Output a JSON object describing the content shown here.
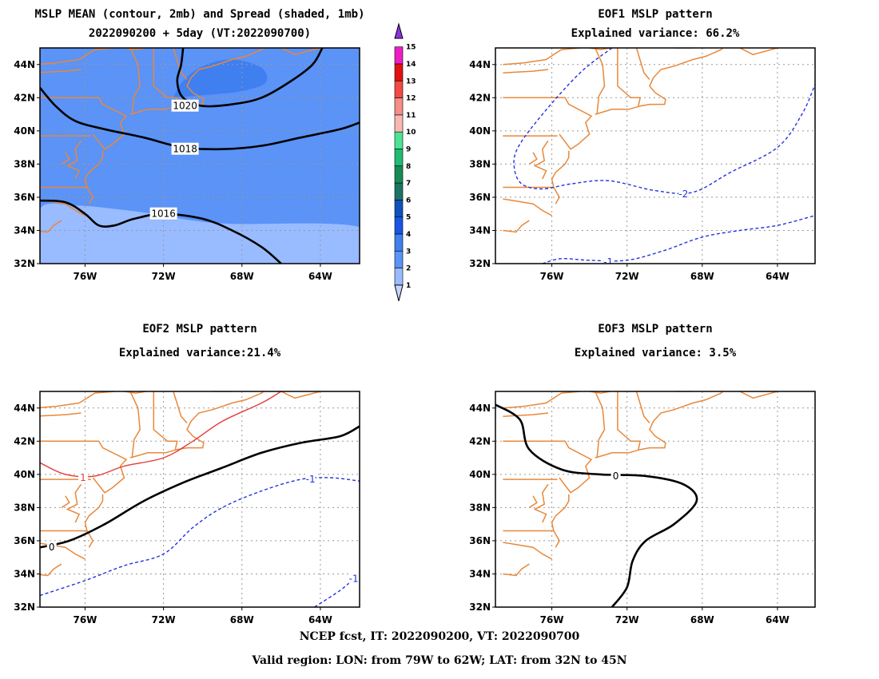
{
  "footer": {
    "line1": "NCEP fcst, IT: 2022090200, VT: 2022090700",
    "line2": "Valid region: LON: from 79W to 62W; LAT: from 32N to 45N"
  },
  "colors": {
    "coast": "#E8883A",
    "positive": "#E83A3A",
    "negative": "#2233DD",
    "zero": "#000000",
    "grid": "#999999"
  },
  "chart_data": [
    {
      "id": "mean",
      "type": "contour",
      "title_lines": [
        "MSLP MEAN (contour, 2mb) and Spread (shaded, 1mb)",
        "2022090200 + 5day (VT:2022090700)"
      ],
      "xlim": [
        -78.3,
        -62.0
      ],
      "ylim": [
        32,
        45
      ],
      "xticks": [
        {
          "v": -76,
          "label": "76W"
        },
        {
          "v": -72,
          "label": "72W"
        },
        {
          "v": -68,
          "label": "68W"
        },
        {
          "v": -64,
          "label": "64W"
        }
      ],
      "yticks": [
        {
          "v": 32,
          "label": "32N"
        },
        {
          "v": 34,
          "label": "34N"
        },
        {
          "v": 36,
          "label": "36N"
        },
        {
          "v": 38,
          "label": "38N"
        },
        {
          "v": 40,
          "label": "40N"
        },
        {
          "v": 42,
          "label": "42N"
        },
        {
          "v": 44,
          "label": "44N"
        }
      ],
      "shading": [
        {
          "level": 2,
          "color": "#99BBFF",
          "points": [
            [
              -78.3,
              32
            ],
            [
              -62,
              32
            ],
            [
              -62,
              34.2
            ],
            [
              -68.5,
              34.4
            ],
            [
              -70.5,
              34.6
            ],
            [
              -72.5,
              35.0
            ],
            [
              -74.5,
              35.3
            ],
            [
              -76.5,
              35.5
            ],
            [
              -78.3,
              35.3
            ]
          ]
        },
        {
          "level": 4,
          "color": "#3F7FF0",
          "points": [
            [
              -71.5,
              42.0
            ],
            [
              -71.0,
              43.0
            ],
            [
              -70.0,
              43.9
            ],
            [
              -68.5,
              44.3
            ],
            [
              -67.0,
              43.8
            ],
            [
              -66.8,
              42.9
            ],
            [
              -68.0,
              42.4
            ],
            [
              -69.5,
              42.2
            ]
          ]
        }
      ],
      "background": "#5B93F6",
      "colorbar": {
        "labels": [
          "1",
          "2",
          "3",
          "4",
          "5",
          "6",
          "7",
          "8",
          "9",
          "10",
          "11",
          "12",
          "13",
          "14",
          "15"
        ],
        "colors": [
          "#C6D7FF",
          "#99BBFF",
          "#5B93F6",
          "#3F7FF0",
          "#1855E6",
          "#0E52BE",
          "#1C7466",
          "#168C54",
          "#20BC72",
          "#4CE494",
          "#F9B7B4",
          "#F48E87",
          "#F34A44",
          "#E21111",
          "#F01CC4",
          "#8A34DD"
        ]
      },
      "contours": [
        {
          "value": 1020,
          "label": "1020",
          "style": "solid",
          "color": "#000000",
          "label_at": [
            -70.9,
            41.5
          ],
          "points": [
            [
              -71.0,
              45
            ],
            [
              -71.1,
              44.0
            ],
            [
              -71.3,
              43.0
            ],
            [
              -71.0,
              42.0
            ],
            [
              -70.0,
              41.5
            ],
            [
              -68.5,
              41.6
            ],
            [
              -67.0,
              42.0
            ],
            [
              -65.5,
              43.0
            ],
            [
              -64.4,
              44.0
            ],
            [
              -63.9,
              45
            ]
          ]
        },
        {
          "value": 1018,
          "label": "1018",
          "style": "solid",
          "color": "#000000",
          "label_at": [
            -70.9,
            38.9
          ],
          "points": [
            [
              -78.3,
              42.6
            ],
            [
              -77.5,
              41.5
            ],
            [
              -76.5,
              40.6
            ],
            [
              -75.0,
              40.1
            ],
            [
              -73.0,
              39.6
            ],
            [
              -71.0,
              39.0
            ],
            [
              -69.0,
              38.9
            ],
            [
              -67.0,
              39.1
            ],
            [
              -65.0,
              39.6
            ],
            [
              -63.0,
              40.1
            ],
            [
              -62.0,
              40.5
            ]
          ]
        },
        {
          "value": 1016,
          "label": "1016",
          "style": "solid",
          "color": "#000000",
          "label_at": [
            -72.0,
            35.0
          ],
          "points": [
            [
              -78.3,
              35.8
            ],
            [
              -77.0,
              35.7
            ],
            [
              -76.0,
              35.0
            ],
            [
              -75.3,
              34.3
            ],
            [
              -74.5,
              34.3
            ],
            [
              -73.5,
              34.7
            ],
            [
              -72.0,
              35.0
            ],
            [
              -70.0,
              34.7
            ],
            [
              -68.5,
              34.0
            ],
            [
              -67.0,
              33.0
            ],
            [
              -66.0,
              32
            ]
          ]
        }
      ]
    },
    {
      "id": "eof1",
      "type": "contour",
      "title_lines": [
        "EOF1 MSLP pattern",
        "Explained variance: 66.2%"
      ],
      "xlim": [
        -79.0,
        -62.0
      ],
      "ylim": [
        32,
        45
      ],
      "xticks": [
        {
          "v": -76,
          "label": "76W"
        },
        {
          "v": -72,
          "label": "72W"
        },
        {
          "v": -68,
          "label": "68W"
        },
        {
          "v": -64,
          "label": "64W"
        }
      ],
      "yticks": [
        {
          "v": 32,
          "label": "32N"
        },
        {
          "v": 34,
          "label": "34N"
        },
        {
          "v": 36,
          "label": "36N"
        },
        {
          "v": 38,
          "label": "38N"
        },
        {
          "v": 40,
          "label": "40N"
        },
        {
          "v": 42,
          "label": "42N"
        },
        {
          "v": 44,
          "label": "44N"
        }
      ],
      "contours": [
        {
          "value": -2,
          "label": "-2",
          "style": "dashed",
          "color": "#2233DD",
          "label_at": [
            -69.0,
            36.2
          ],
          "points": [
            [
              -72.8,
              45
            ],
            [
              -74.5,
              43.5
            ],
            [
              -76.5,
              41.0
            ],
            [
              -77.8,
              39.0
            ],
            [
              -78.0,
              37.8
            ],
            [
              -77.6,
              36.8
            ],
            [
              -76.5,
              36.5
            ],
            [
              -75.0,
              36.8
            ],
            [
              -73.0,
              37.0
            ],
            [
              -70.5,
              36.4
            ],
            [
              -68.5,
              36.3
            ],
            [
              -66.5,
              37.5
            ],
            [
              -64.0,
              39.0
            ],
            [
              -62.7,
              41.0
            ],
            [
              -62.0,
              42.8
            ]
          ]
        },
        {
          "value": -1,
          "label": "-1",
          "style": "dashed",
          "color": "#2233DD",
          "label_at": [
            -73.0,
            32.1
          ],
          "points": [
            [
              -76.5,
              32
            ],
            [
              -75.5,
              32.3
            ],
            [
              -74.0,
              32.2
            ],
            [
              -72.0,
              32.2
            ],
            [
              -70.0,
              32.8
            ],
            [
              -68.0,
              33.6
            ],
            [
              -66.0,
              34.0
            ],
            [
              -64.0,
              34.3
            ],
            [
              -62.0,
              34.9
            ]
          ]
        }
      ]
    },
    {
      "id": "eof2",
      "type": "contour",
      "title_lines": [
        "EOF2 MSLP pattern",
        "Explained variance:21.4%"
      ],
      "xlim": [
        -78.3,
        -62.0
      ],
      "ylim": [
        32,
        45
      ],
      "xticks": [
        {
          "v": -76,
          "label": "76W"
        },
        {
          "v": -72,
          "label": "72W"
        },
        {
          "v": -68,
          "label": "68W"
        },
        {
          "v": -64,
          "label": "64W"
        }
      ],
      "yticks": [
        {
          "v": 32,
          "label": "32N"
        },
        {
          "v": 34,
          "label": "34N"
        },
        {
          "v": 36,
          "label": "36N"
        },
        {
          "v": 38,
          "label": "38N"
        },
        {
          "v": 40,
          "label": "40N"
        },
        {
          "v": 42,
          "label": "42N"
        },
        {
          "v": 44,
          "label": "44N"
        }
      ],
      "contours": [
        {
          "value": 1,
          "label": "1",
          "style": "solid",
          "color": "#E83A3A",
          "label_at": [
            -76.1,
            39.8
          ],
          "points": [
            [
              -78.3,
              40.7
            ],
            [
              -77.0,
              40.0
            ],
            [
              -75.5,
              39.9
            ],
            [
              -74.0,
              40.5
            ],
            [
              -72.0,
              41.0
            ],
            [
              -70.5,
              42.0
            ],
            [
              -69.0,
              43.2
            ],
            [
              -67.0,
              44.3
            ],
            [
              -66.0,
              45
            ]
          ]
        },
        {
          "value": 0,
          "label": "0",
          "style": "solid",
          "color": "#000000",
          "label_at": [
            -77.7,
            35.6
          ],
          "points": [
            [
              -78.3,
              35.6
            ],
            [
              -76.8,
              36.0
            ],
            [
              -75.0,
              37.0
            ],
            [
              -73.0,
              38.4
            ],
            [
              -71.0,
              39.5
            ],
            [
              -69.0,
              40.4
            ],
            [
              -67.0,
              41.3
            ],
            [
              -65.0,
              41.9
            ],
            [
              -63.0,
              42.3
            ],
            [
              -62.0,
              42.9
            ]
          ]
        },
        {
          "value": -1,
          "label": "-1",
          "style": "dashed",
          "color": "#2233DD",
          "label_at": [
            -64.5,
            39.7
          ],
          "points": [
            [
              -78.3,
              32.7
            ],
            [
              -76.0,
              33.6
            ],
            [
              -74.0,
              34.5
            ],
            [
              -72.0,
              35.2
            ],
            [
              -70.5,
              36.8
            ],
            [
              -69.0,
              38.0
            ],
            [
              -67.0,
              39.0
            ],
            [
              -65.0,
              39.7
            ],
            [
              -63.5,
              39.8
            ],
            [
              -62.0,
              39.6
            ]
          ]
        },
        {
          "value": -1,
          "label": "-1",
          "style": "dashed",
          "color": "#2233DD",
          "label_at": [
            -62.3,
            33.7
          ],
          "points": [
            [
              -64.3,
              32
            ],
            [
              -63.0,
              33.0
            ],
            [
              -62.3,
              33.7
            ]
          ]
        }
      ]
    },
    {
      "id": "eof3",
      "type": "contour",
      "title_lines": [
        "EOF3 MSLP pattern",
        "Explained variance: 3.5%"
      ],
      "xlim": [
        -79.0,
        -62.0
      ],
      "ylim": [
        32,
        45
      ],
      "xticks": [
        {
          "v": -76,
          "label": "76W"
        },
        {
          "v": -72,
          "label": "72W"
        },
        {
          "v": -68,
          "label": "68W"
        },
        {
          "v": -64,
          "label": "64W"
        }
      ],
      "yticks": [
        {
          "v": 32,
          "label": "32N"
        },
        {
          "v": 34,
          "label": "34N"
        },
        {
          "v": 36,
          "label": "36N"
        },
        {
          "v": 38,
          "label": "38N"
        },
        {
          "v": 40,
          "label": "40N"
        },
        {
          "v": 42,
          "label": "42N"
        },
        {
          "v": 44,
          "label": "44N"
        }
      ],
      "contours": [
        {
          "value": 0,
          "label": "0",
          "style": "solid",
          "color": "#000000",
          "label_at": [
            -72.6,
            39.9
          ],
          "points": [
            [
              -79.0,
              44.2
            ],
            [
              -77.7,
              43.3
            ],
            [
              -77.2,
              41.5
            ],
            [
              -75.5,
              40.3
            ],
            [
              -73.5,
              40.0
            ],
            [
              -71.0,
              39.9
            ],
            [
              -69.0,
              39.4
            ],
            [
              -68.3,
              38.4
            ],
            [
              -69.5,
              37.0
            ],
            [
              -71.0,
              36.0
            ],
            [
              -71.7,
              34.8
            ],
            [
              -72.0,
              33.2
            ],
            [
              -72.8,
              32.0
            ]
          ]
        }
      ]
    }
  ]
}
